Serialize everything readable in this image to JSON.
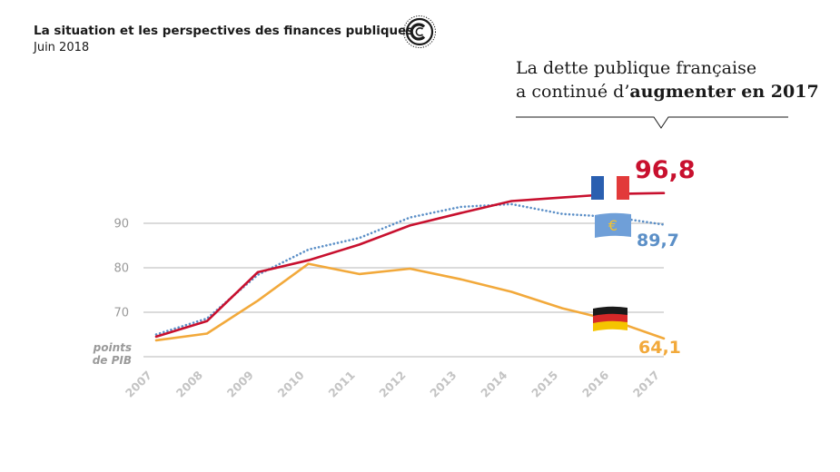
{
  "header": {
    "title": "La situation et les perspectives des finances publiques",
    "subtitle": "Juin 2018"
  },
  "logo": {
    "icon": "cour-des-comptes-seal-icon"
  },
  "headline": {
    "line1": "La dette publique française",
    "line2_prefix": "a continué d’",
    "line2_bold": "augmenter en 2017"
  },
  "chart_data": {
    "type": "line",
    "title": "",
    "xlabel": "",
    "ylabel": "points de PIB",
    "ylabel_lines": [
      "points",
      "de PIB"
    ],
    "ylim": [
      60,
      100
    ],
    "y_ticks": [
      60,
      70,
      80,
      90
    ],
    "y_tick_labels": [
      "",
      "70",
      "80",
      "90"
    ],
    "x": [
      "2007",
      "2008",
      "2009",
      "2010",
      "2011",
      "2012",
      "2013",
      "2014",
      "2015",
      "2016",
      "2017"
    ],
    "grid": true,
    "series": [
      {
        "key": "euro",
        "flag_icon": "euro-flag-icon",
        "color": "#5b8fc7",
        "style": "dotted",
        "values": [
          65.0,
          68.6,
          78.4,
          84.1,
          86.7,
          91.3,
          93.7,
          94.3,
          92.1,
          91.4,
          89.7
        ],
        "end_label": "89,7"
      },
      {
        "key": "germany",
        "flag_icon": "germany-flag-icon",
        "color": "#f2a93b",
        "style": "solid",
        "values": [
          63.7,
          65.2,
          72.6,
          80.9,
          78.6,
          79.8,
          77.4,
          74.6,
          70.9,
          68.1,
          64.1
        ],
        "end_label": "64,1"
      },
      {
        "key": "france",
        "flag_icon": "france-flag-icon",
        "color": "#c8102e",
        "style": "solid",
        "values": [
          64.5,
          68.0,
          79.0,
          81.7,
          85.2,
          89.5,
          92.3,
          95.0,
          95.8,
          96.6,
          96.8
        ],
        "end_label": "96,8"
      }
    ]
  }
}
